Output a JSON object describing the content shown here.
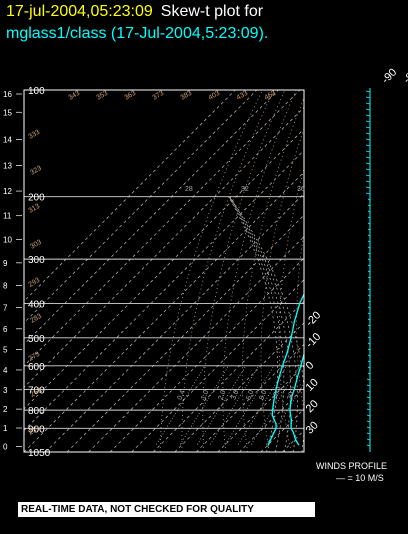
{
  "header": {
    "date_time": "17-jul-2004,05:23:09",
    "plot_label": "Skew-t plot for",
    "subtitle": "mglass1/class (17-Jul-2004,5:23:09)."
  },
  "chart_data": {
    "type": "skew-t",
    "pressure_ticks": [
      "100",
      "200",
      "300",
      "400",
      "500",
      "600",
      "700",
      "800",
      "900",
      "1050"
    ],
    "pressure_values": [
      100,
      200,
      300,
      400,
      500,
      600,
      700,
      800,
      900,
      1050
    ],
    "pressure_range": [
      100,
      1050
    ],
    "height_ticks_km": [
      "16",
      "15",
      "14",
      "13",
      "12",
      "11",
      "10",
      "9",
      "8",
      "7",
      "6",
      "5",
      "4",
      "3",
      "2",
      "1",
      "0"
    ],
    "isotherm_top_labels": [
      "-90",
      "-80",
      "-70",
      "-60",
      "-50",
      "-40",
      "-30"
    ],
    "isotherm_right_labels": [
      "-20",
      "-10",
      "0",
      "10",
      "20",
      "30"
    ],
    "isotherm_range_C": [
      -90,
      40
    ],
    "mixing_ratio_labels": [
      "0.4",
      "1.0",
      "2.0",
      "3.0",
      "5.0",
      "8.0",
      "12.0",
      "20.0"
    ],
    "theta_labels": [
      "253",
      "263",
      "273",
      "283",
      "293",
      "303",
      "313",
      "323",
      "333",
      "343",
      "353",
      "363",
      "373",
      "383",
      "403",
      "433",
      "463"
    ],
    "theta_e_labels": [
      "28",
      "32",
      "36"
    ],
    "temperature_profile": [
      {
        "p": 1000,
        "t": 34
      },
      {
        "p": 975,
        "t": 31
      },
      {
        "p": 950,
        "t": 28.5
      },
      {
        "p": 925,
        "t": 26
      },
      {
        "p": 900,
        "t": 23
      },
      {
        "p": 875,
        "t": 21
      },
      {
        "p": 850,
        "t": 19
      },
      {
        "p": 825,
        "t": 16.5
      },
      {
        "p": 800,
        "t": 14
      },
      {
        "p": 775,
        "t": 12
      },
      {
        "p": 750,
        "t": 10
      },
      {
        "p": 725,
        "t": 8
      },
      {
        "p": 700,
        "t": 6.5
      },
      {
        "p": 650,
        "t": 2.5
      },
      {
        "p": 600,
        "t": -1.5
      },
      {
        "p": 550,
        "t": -6
      },
      {
        "p": 500,
        "t": -10
      },
      {
        "p": 450,
        "t": -15
      },
      {
        "p": 400,
        "t": -20
      },
      {
        "p": 350,
        "t": -26
      },
      {
        "p": 300,
        "t": -34
      },
      {
        "p": 250,
        "t": -42
      },
      {
        "p": 200,
        "t": -52
      },
      {
        "p": 175,
        "t": -58
      },
      {
        "p": 150,
        "t": -64
      },
      {
        "p": 125,
        "t": -70
      },
      {
        "p": 110,
        "t": -72
      },
      {
        "p": 100,
        "t": -68
      }
    ],
    "dewpoint_profile": [
      {
        "p": 1000,
        "t": 20
      },
      {
        "p": 975,
        "t": 19
      },
      {
        "p": 950,
        "t": 18
      },
      {
        "p": 925,
        "t": 17
      },
      {
        "p": 900,
        "t": 16
      },
      {
        "p": 875,
        "t": 14
      },
      {
        "p": 850,
        "t": 11
      },
      {
        "p": 825,
        "t": 8
      },
      {
        "p": 800,
        "t": 6
      },
      {
        "p": 775,
        "t": 4
      },
      {
        "p": 750,
        "t": 2
      },
      {
        "p": 725,
        "t": 0
      },
      {
        "p": 700,
        "t": -2
      },
      {
        "p": 650,
        "t": -6
      },
      {
        "p": 600,
        "t": -10
      },
      {
        "p": 550,
        "t": -14
      },
      {
        "p": 500,
        "t": -19
      },
      {
        "p": 450,
        "t": -25
      },
      {
        "p": 400,
        "t": -31
      },
      {
        "p": 350,
        "t": -36
      },
      {
        "p": 300,
        "t": -41
      },
      {
        "p": 250,
        "t": -48
      },
      {
        "p": 200,
        "t": -57
      },
      {
        "p": 175,
        "t": -62
      },
      {
        "p": 150,
        "t": -68
      },
      {
        "p": 125,
        "t": -75
      },
      {
        "p": 110,
        "t": -80
      },
      {
        "p": 100,
        "t": -74
      }
    ],
    "winds_label": "WINDS PROFILE",
    "winds_scale_label": "— = 10 M/S",
    "colors": {
      "profile": "#00ffff",
      "grid": "#aaaaaa",
      "isobar": "#d8d8d8",
      "label": "#ffffff",
      "theta": "#c8a07a",
      "date": "#ffff00"
    }
  },
  "footer": {
    "notice": "REAL-TIME DATA, NOT CHECKED FOR QUALITY"
  }
}
